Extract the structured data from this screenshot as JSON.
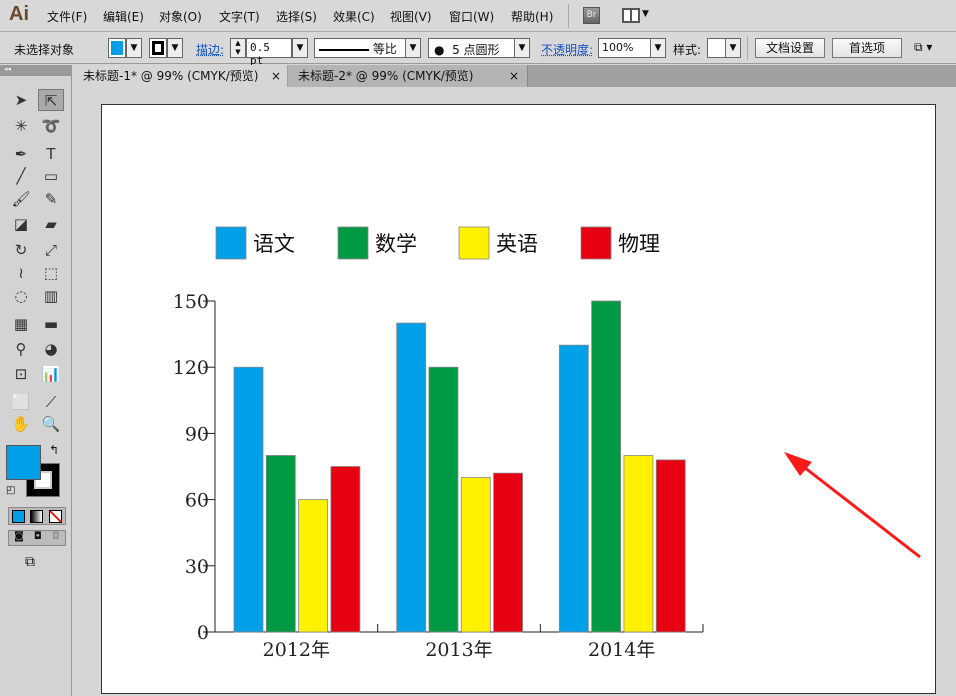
{
  "app": {
    "logo": "Ai"
  },
  "menu": [
    "文件(F)",
    "编辑(E)",
    "对象(O)",
    "文字(T)",
    "选择(S)",
    "效果(C)",
    "视图(V)",
    "窗口(W)",
    "帮助(H)"
  ],
  "menu_icons": {
    "bridge": "Br"
  },
  "control": {
    "selection": "未选择对象",
    "fill_color": "#00a0e9",
    "stroke_label": "描边:",
    "stroke_weight": "0.5 pt",
    "stroke_profile": "等比",
    "brush": "5 点圆形",
    "opacity_label": "不透明度:",
    "opacity": "100%",
    "style_label": "样式:",
    "doc_setup": "文档设置",
    "preferences": "首选项"
  },
  "tabs": [
    {
      "label": "未标题-1* @ 99% (CMYK/预览)",
      "active": true
    },
    {
      "label": "未标题-2* @ 99% (CMYK/预览)",
      "active": false
    }
  ],
  "tab_close": "×",
  "chart_data": {
    "type": "bar",
    "categories": [
      "2012年",
      "2013年",
      "2014年"
    ],
    "series": [
      {
        "name": "语文",
        "color": "#00a0e9",
        "values": [
          120,
          140,
          130
        ]
      },
      {
        "name": "数学",
        "color": "#009944",
        "values": [
          80,
          120,
          150
        ]
      },
      {
        "name": "英语",
        "color": "#fff100",
        "values": [
          60,
          70,
          80
        ]
      },
      {
        "name": "物理",
        "color": "#e60012",
        "values": [
          75,
          72,
          78
        ]
      }
    ],
    "yticks": [
      0,
      30,
      60,
      90,
      120,
      150
    ],
    "ylim": [
      0,
      150
    ],
    "legend": "top",
    "grid": false
  },
  "annotation": {
    "arrow_color": "#ff1a1a"
  }
}
